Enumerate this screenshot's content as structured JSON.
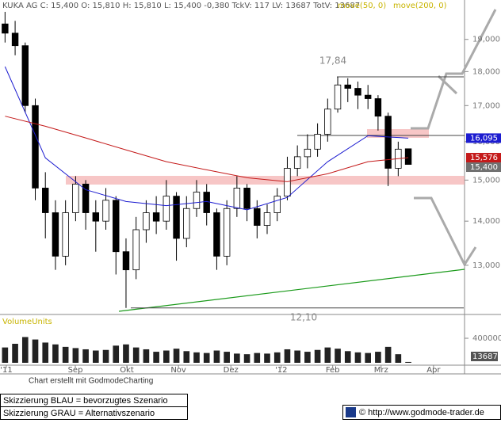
{
  "chart_data": {
    "type": "candlestick",
    "title": "KUKA AG C: 15,400 O: 15,810 H: 15,810 L: 15,400 -0,380 TckV: 117 LV: 13687 TotV: 13687",
    "open": [
      19.5,
      19.2,
      18.8,
      17.0,
      14.8,
      14.2,
      13.2,
      14.2,
      14.9,
      14.2,
      14.0,
      14.5,
      13.3,
      12.9,
      13.8,
      14.2,
      14.0,
      14.6,
      13.6,
      14.3,
      14.7,
      14.2,
      13.2,
      14.3,
      14.8,
      14.3,
      13.9,
      14.2,
      14.6,
      15.3,
      15.6,
      15.8,
      16.2,
      16.9,
      17.6,
      17.5,
      17.3,
      17.2,
      16.7,
      15.3,
      15.81
    ],
    "high": [
      19.9,
      19.6,
      18.9,
      17.2,
      15.2,
      14.5,
      14.5,
      15.1,
      15.0,
      14.5,
      14.8,
      14.6,
      13.6,
      14.1,
      14.5,
      14.6,
      15.0,
      14.7,
      14.6,
      15.0,
      14.9,
      14.3,
      14.5,
      15.1,
      14.9,
      14.5,
      14.4,
      14.8,
      15.6,
      15.9,
      16.2,
      16.5,
      17.2,
      17.84,
      17.8,
      17.7,
      17.6,
      17.3,
      16.8,
      16.0,
      15.81
    ],
    "low": [
      18.9,
      18.5,
      16.8,
      14.5,
      13.6,
      12.9,
      13.0,
      14.0,
      13.8,
      13.3,
      13.8,
      12.8,
      12.1,
      12.7,
      13.5,
      13.7,
      13.8,
      13.1,
      13.4,
      14.1,
      13.9,
      12.9,
      13.0,
      14.1,
      14.0,
      13.6,
      13.7,
      14.0,
      14.5,
      15.1,
      15.3,
      15.6,
      16.0,
      16.8,
      17.1,
      16.9,
      16.9,
      16.3,
      14.85,
      15.1,
      15.4
    ],
    "close": [
      19.2,
      18.8,
      17.0,
      14.8,
      14.2,
      13.2,
      14.2,
      14.9,
      14.2,
      14.0,
      14.5,
      13.3,
      12.9,
      13.8,
      14.2,
      14.0,
      14.6,
      13.6,
      14.3,
      14.7,
      14.2,
      13.2,
      14.3,
      14.8,
      14.3,
      13.9,
      14.2,
      14.6,
      15.3,
      15.6,
      15.8,
      16.2,
      16.9,
      17.6,
      17.5,
      17.3,
      17.2,
      16.7,
      15.3,
      15.8,
      15.4
    ],
    "series": [
      {
        "name": "move(50, 0)",
        "color": "#1c1cd0",
        "x": [
          0,
          4,
          8,
          12,
          16,
          20,
          24,
          28,
          32,
          36,
          40
        ],
        "values": [
          18.15,
          15.57,
          14.76,
          14.47,
          14.37,
          14.47,
          14.27,
          14.57,
          15.47,
          16.16,
          16.095
        ]
      },
      {
        "name": "move(200, 0)",
        "color": "#c41a1a",
        "x": [
          0,
          4,
          8,
          12,
          16,
          20,
          24,
          28,
          32,
          36,
          40
        ],
        "values": [
          16.7,
          16.42,
          16.1,
          15.78,
          15.47,
          15.26,
          15.06,
          14.96,
          15.16,
          15.47,
          15.576
        ]
      }
    ],
    "last_labels": [
      {
        "value": 16.095,
        "label": "16,095",
        "color": "#1c1cd0"
      },
      {
        "value": 15.576,
        "label": "15,576",
        "color": "#c41a1a"
      },
      {
        "value": 15.4,
        "label": "15,400",
        "color": "#707070"
      }
    ],
    "annotations": [
      {
        "value": 17.84,
        "label": "17,84"
      },
      {
        "value": 12.1,
        "label": "12,10"
      }
    ],
    "log_scale": true,
    "xlim": [
      -0.5,
      45.5
    ],
    "ylim": [
      12.0,
      20.3
    ],
    "yticks": [
      {
        "value": 13,
        "label": "13,000"
      },
      {
        "value": 14,
        "label": "14,000"
      },
      {
        "value": 15,
        "label": "15,000"
      },
      {
        "value": 16,
        "label": "16,000"
      },
      {
        "value": 17,
        "label": "17,000"
      },
      {
        "value": 18,
        "label": "18,000"
      },
      {
        "value": 19,
        "label": "19,000"
      }
    ],
    "xticks": [
      {
        "value": 0.13,
        "label": "'11"
      },
      {
        "value": 6.97,
        "label": "Sep"
      },
      {
        "value": 12.08,
        "label": "Okt"
      },
      {
        "value": 17.2,
        "label": "Nov"
      },
      {
        "value": 22.4,
        "label": "Dez"
      },
      {
        "value": 27.4,
        "label": "'12"
      },
      {
        "value": 32.5,
        "label": "Feb"
      },
      {
        "value": 37.3,
        "label": "Mrz"
      },
      {
        "value": 42.5,
        "label": "Apr"
      }
    ],
    "volume": {
      "label": "VolumeUnits",
      "ylim": [
        0,
        620000
      ],
      "yticks": [
        400000
      ],
      "values": [
        250000,
        310000,
        420000,
        380000,
        330000,
        300000,
        260000,
        240000,
        220000,
        200000,
        210000,
        280000,
        300000,
        250000,
        220000,
        180000,
        200000,
        230000,
        190000,
        170000,
        160000,
        200000,
        180000,
        150000,
        140000,
        160000,
        150000,
        170000,
        220000,
        200000,
        180000,
        210000,
        250000,
        230000,
        190000,
        170000,
        160000,
        180000,
        260000,
        140000,
        13687
      ]
    }
  },
  "footer": {
    "credit": "Chart erstellt mit GodmodeCharting",
    "legend_blue": "Skizzierung BLAU = bevorzugtes Szenario",
    "legend_gray": "Skizzierung GRAU = Alternativszenario",
    "copyright": "© http://www.godmode-trader.de"
  }
}
